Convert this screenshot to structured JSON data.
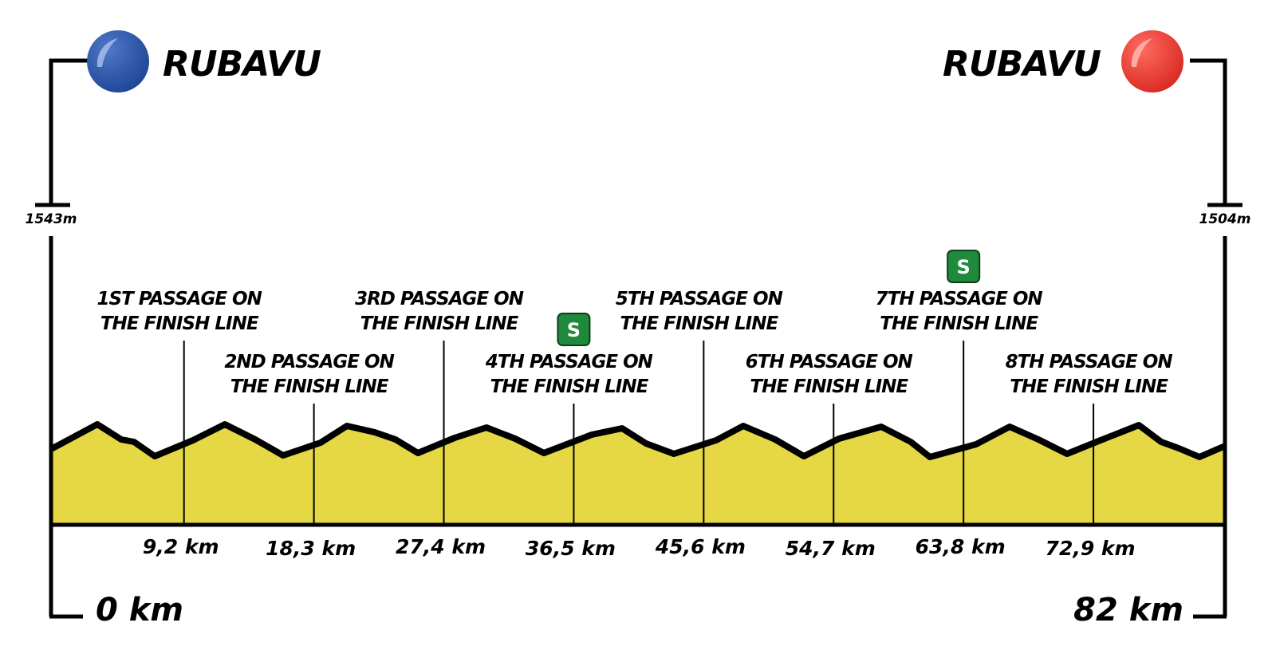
{
  "start": {
    "town": "RUBAVU",
    "altitude": "1543m",
    "distance": "0 km",
    "color": "#2b54a8"
  },
  "finish": {
    "town": "RUBAVU",
    "altitude": "1504m",
    "distance": "82 km",
    "color": "#e83a33"
  },
  "profile_fill": "#e6d844",
  "sprint": {
    "label": "S",
    "color": "#1f8a3b"
  },
  "passages": [
    {
      "line1": "1ST PASSAGE ON",
      "line2": "THE FINISH LINE",
      "km": 9.2,
      "km_label": "9,2 km",
      "sprint": false
    },
    {
      "line1": "2ND PASSAGE ON",
      "line2": "THE FINISH LINE",
      "km": 18.3,
      "km_label": "18,3 km",
      "sprint": false
    },
    {
      "line1": "3RD PASSAGE ON",
      "line2": "THE FINISH LINE",
      "km": 27.4,
      "km_label": "27,4 km",
      "sprint": false
    },
    {
      "line1": "4TH PASSAGE ON",
      "line2": "THE FINISH LINE",
      "km": 36.5,
      "km_label": "36,5 km",
      "sprint": true
    },
    {
      "line1": "5TH PASSAGE ON",
      "line2": "THE FINISH LINE",
      "km": 45.6,
      "km_label": "45,6 km",
      "sprint": false
    },
    {
      "line1": "6TH PASSAGE ON",
      "line2": "THE FINISH LINE",
      "km": 54.7,
      "km_label": "54,7 km",
      "sprint": false
    },
    {
      "line1": "7TH PASSAGE ON",
      "line2": "THE FINISH LINE",
      "km": 63.8,
      "km_label": "63,8 km",
      "sprint": true
    },
    {
      "line1": "8TH PASSAGE ON",
      "line2": "THE FINISH LINE",
      "km": 72.9,
      "km_label": "72,9 km",
      "sprint": false
    }
  ]
}
